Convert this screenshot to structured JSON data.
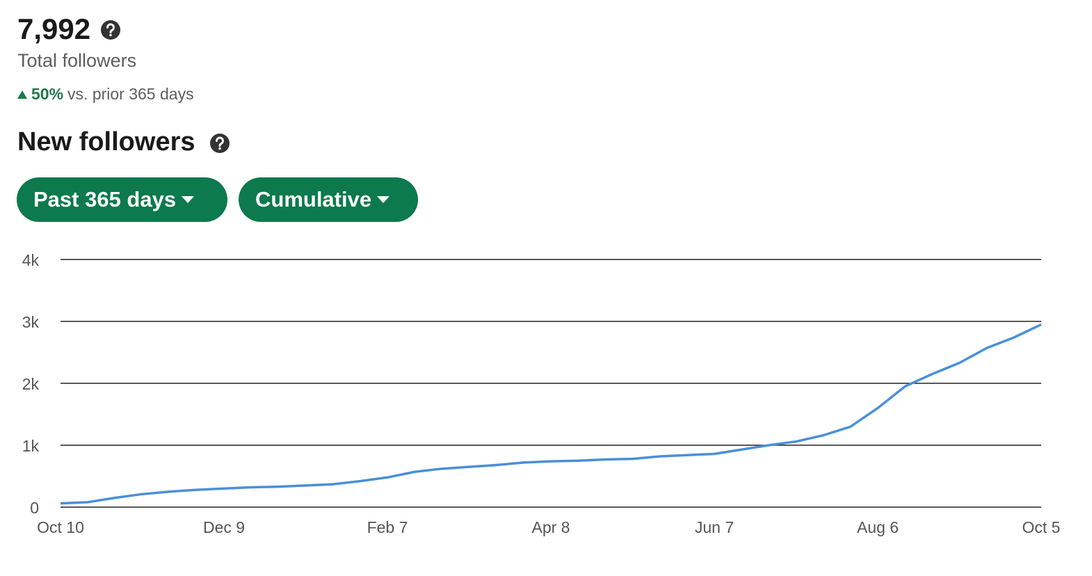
{
  "header": {
    "total": "7,992",
    "total_label": "Total followers",
    "change": "50%",
    "change_label": "vs. prior 365 days"
  },
  "section_title": "New followers",
  "filters": [
    "Past 365 days",
    "Cumulative"
  ],
  "chart_data": {
    "type": "line",
    "categories": [
      "Oct 10",
      null,
      null,
      null,
      null,
      null,
      "Dec 9",
      null,
      null,
      null,
      null,
      null,
      "Feb 7",
      null,
      null,
      null,
      null,
      null,
      "Apr 8",
      null,
      null,
      null,
      null,
      null,
      "Jun 7",
      null,
      null,
      null,
      null,
      null,
      "Aug 6",
      null,
      null,
      null,
      null,
      null,
      "Oct 5"
    ],
    "values": [
      60,
      80,
      150,
      210,
      250,
      280,
      300,
      320,
      330,
      350,
      370,
      420,
      480,
      570,
      620,
      650,
      680,
      720,
      740,
      750,
      770,
      780,
      820,
      840,
      860,
      930,
      1000,
      1060,
      1160,
      1300,
      1600,
      1950,
      2150,
      2330,
      2570,
      2740,
      2950
    ],
    "color": "#4a8fd9",
    "ylim": [
      0,
      4000
    ],
    "yticks": [
      0,
      {
        "value": 1000,
        "label": "1k"
      },
      {
        "value": 2000,
        "label": "2k"
      },
      {
        "value": 3000,
        "label": "3k"
      },
      {
        "value": 4000,
        "label": "4k"
      }
    ],
    "grid": true
  }
}
